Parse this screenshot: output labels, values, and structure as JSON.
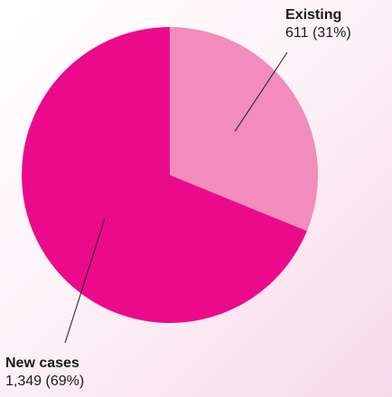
{
  "chart_data": {
    "type": "pie",
    "slices": [
      {
        "label": "Existing",
        "value": 611,
        "value_text": "611",
        "percent_text": "31%",
        "color": "#f28cbc"
      },
      {
        "label": "New cases",
        "value": 1349,
        "value_text": "1,349",
        "percent_text": "69%",
        "color": "#ec0a8c"
      }
    ],
    "start_angle": "12 o'clock",
    "direction": "clockwise"
  }
}
